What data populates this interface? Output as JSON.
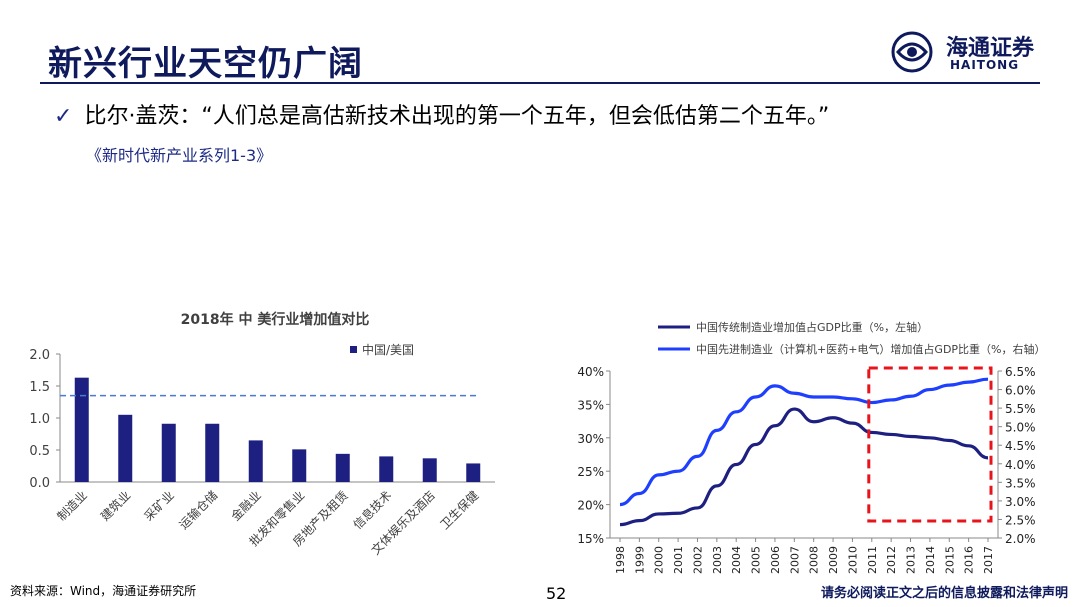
{
  "page": {
    "title": "新兴行业天空仍广阔",
    "logo_cn": "海通证券",
    "logo_en": "HAITONG",
    "quote": "比尔·盖茨：“人们总是高估新技术出现的第一个五年，但会低估第二个五年。”",
    "series_ref": "《新时代新产业系列1-3》",
    "source": "资料来源：Wind，海通证券研究所",
    "page_number": "52",
    "disclaimer": "请务必阅读正文之后的信息披露和法律声明",
    "colors": {
      "navy": "#1d2080",
      "blue": "#1f3fff",
      "dashed_ref": "#4a7bd0",
      "highlight": "#e8141c"
    }
  },
  "chart_data": [
    {
      "type": "bar",
      "title": "2018年 中 美行业增加值对比",
      "legend": [
        "中国/美国"
      ],
      "legend_position": "top-right",
      "categories": [
        "制造业",
        "建筑业",
        "采矿业",
        "运输仓储",
        "金融业",
        "批发和零售业",
        "房地产及租赁",
        "信息技术",
        "文体娱乐及酒店",
        "卫生保健"
      ],
      "series": [
        {
          "name": "中国/美国",
          "values": [
            1.63,
            1.05,
            0.91,
            0.91,
            0.65,
            0.51,
            0.44,
            0.4,
            0.37,
            0.29
          ]
        }
      ],
      "reference_line": 1.35,
      "ylim": [
        0,
        2.0
      ],
      "yticks": [
        "2.0",
        "1.5",
        "1.0",
        "0.5",
        "0.0"
      ],
      "grid": false
    },
    {
      "type": "line",
      "legend_position": "top",
      "x": [
        "1998",
        "1999",
        "2000",
        "2001",
        "2002",
        "2003",
        "2004",
        "2005",
        "2006",
        "2007",
        "2008",
        "2009",
        "2010",
        "2011",
        "2012",
        "2013",
        "2014",
        "2015",
        "2016",
        "2017"
      ],
      "series": [
        {
          "name": "中国传统制造业增加值占GDP比重（%，左轴）",
          "axis": "left",
          "values": [
            17.0,
            17.6,
            18.6,
            18.7,
            19.5,
            22.8,
            26.0,
            29.0,
            31.8,
            34.3,
            32.4,
            33.0,
            32.2,
            30.8,
            30.5,
            30.2,
            30.0,
            29.6,
            28.8,
            27.0
          ]
        },
        {
          "name": "中国先进制造业（计算机+医药+电气）增加值占GDP比重（%，右轴）",
          "axis": "right",
          "values": [
            2.9,
            3.2,
            3.7,
            3.8,
            4.2,
            4.9,
            5.4,
            5.8,
            6.1,
            5.9,
            5.8,
            5.8,
            5.75,
            5.65,
            5.72,
            5.82,
            6.0,
            6.12,
            6.2,
            6.28
          ]
        }
      ],
      "y_left": {
        "ylim": [
          15,
          40
        ],
        "ticks": [
          "40%",
          "35%",
          "30%",
          "25%",
          "20%",
          "15%"
        ]
      },
      "y_right": {
        "ylim": [
          2.0,
          6.5
        ],
        "ticks": [
          "6.5%",
          "6.0%",
          "5.5%",
          "5.0%",
          "4.5%",
          "4.0%",
          "3.5%",
          "3.0%",
          "2.5%",
          "2.0%"
        ]
      },
      "highlight_range": [
        "2011",
        "2017"
      ],
      "grid": false
    }
  ]
}
